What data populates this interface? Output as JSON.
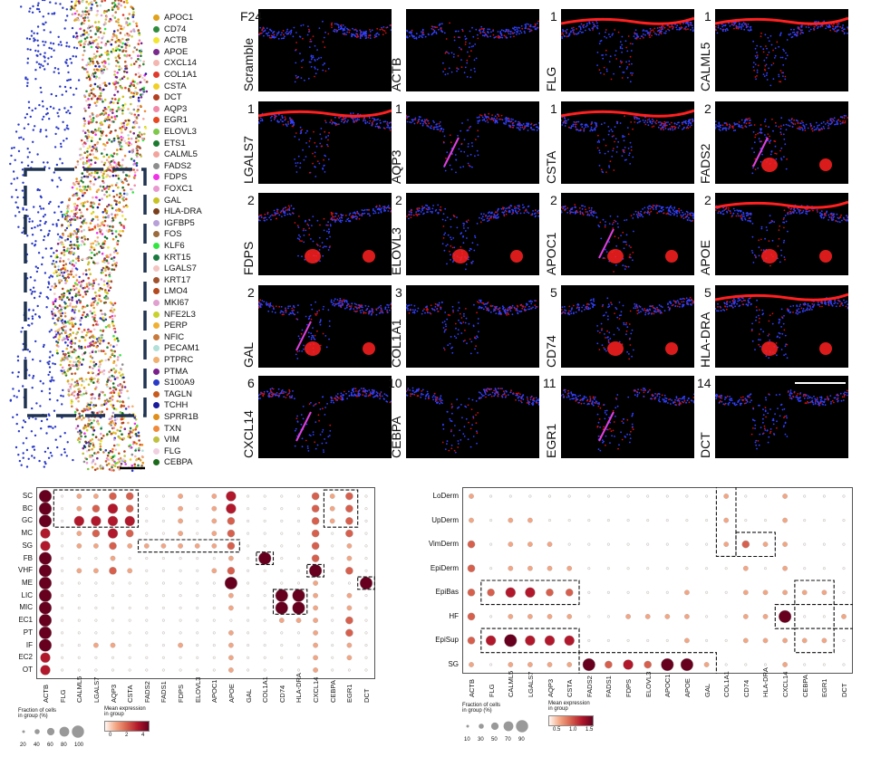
{
  "spatial_panel": {
    "legend": [
      {
        "gene": "APOC1",
        "color": "#e0a11b"
      },
      {
        "gene": "CD74",
        "color": "#2e8b3a"
      },
      {
        "gene": "ACTB",
        "color": "#f2e632"
      },
      {
        "gene": "APOE",
        "color": "#7a2a8c"
      },
      {
        "gene": "CXCL14",
        "color": "#f4b6b0"
      },
      {
        "gene": "COL1A1",
        "color": "#e03a2a"
      },
      {
        "gene": "CSTA",
        "color": "#f0d022"
      },
      {
        "gene": "DCT",
        "color": "#b3401f"
      },
      {
        "gene": "AQP3",
        "color": "#f08aa8"
      },
      {
        "gene": "EGR1",
        "color": "#e8471f"
      },
      {
        "gene": "ELOVL3",
        "color": "#7ec84a"
      },
      {
        "gene": "ETS1",
        "color": "#1b7a2f"
      },
      {
        "gene": "CALML5",
        "color": "#f2a49c"
      },
      {
        "gene": "FADS2",
        "color": "#8d8d8d"
      },
      {
        "gene": "FDPS",
        "color": "#f032e6"
      },
      {
        "gene": "FOXC1",
        "color": "#e89ad0"
      },
      {
        "gene": "GAL",
        "color": "#c9c224"
      },
      {
        "gene": "HLA-DRA",
        "color": "#7a3f1a"
      },
      {
        "gene": "IGFBP5",
        "color": "#b8a0d8"
      },
      {
        "gene": "FOS",
        "color": "#9c6a3c"
      },
      {
        "gene": "KLF6",
        "color": "#32e640"
      },
      {
        "gene": "KRT15",
        "color": "#197a40"
      },
      {
        "gene": "LGALS7",
        "color": "#f4c4c0"
      },
      {
        "gene": "KRT17",
        "color": "#a0522d"
      },
      {
        "gene": "LMO4",
        "color": "#b34a1f"
      },
      {
        "gene": "MKI67",
        "color": "#e0a0d0"
      },
      {
        "gene": "NFE2L3",
        "color": "#c8d22a"
      },
      {
        "gene": "PERP",
        "color": "#f0b030"
      },
      {
        "gene": "NFIC",
        "color": "#c87a3a"
      },
      {
        "gene": "PECAM1",
        "color": "#b0e0d8"
      },
      {
        "gene": "PTPRC",
        "color": "#f0b070"
      },
      {
        "gene": "PTMA",
        "color": "#7a1f8c"
      },
      {
        "gene": "S100A9",
        "color": "#2a3ac8"
      },
      {
        "gene": "TAGLN",
        "color": "#c85a1a"
      },
      {
        "gene": "TCHH",
        "color": "#1a1a9c"
      },
      {
        "gene": "SPRR1B",
        "color": "#e0901a"
      },
      {
        "gene": "TXN",
        "color": "#f08a3a"
      },
      {
        "gene": "VIM",
        "color": "#c0c040"
      },
      {
        "gene": "FLG",
        "color": "#f0d0e0"
      },
      {
        "gene": "CEBPA",
        "color": "#1a6a1a"
      }
    ]
  },
  "tiles": [
    {
      "gene": "Scramble",
      "num": "F24"
    },
    {
      "gene": "ACTB",
      "num": ""
    },
    {
      "gene": "FLG",
      "num": "1"
    },
    {
      "gene": "CALML5",
      "num": "1"
    },
    {
      "gene": "LGALS7",
      "num": "1"
    },
    {
      "gene": "AQP3",
      "num": "1"
    },
    {
      "gene": "CSTA",
      "num": "1"
    },
    {
      "gene": "FADS2",
      "num": "2"
    },
    {
      "gene": "FDPS",
      "num": "2"
    },
    {
      "gene": "ELOVL3",
      "num": "2"
    },
    {
      "gene": "APOC1",
      "num": "2"
    },
    {
      "gene": "APOE",
      "num": "2"
    },
    {
      "gene": "GAL",
      "num": "2"
    },
    {
      "gene": "COL1A1",
      "num": "3"
    },
    {
      "gene": "CD74",
      "num": "5"
    },
    {
      "gene": "HLA-DRA",
      "num": "5"
    },
    {
      "gene": "CXCL14",
      "num": "6"
    },
    {
      "gene": "CEBPA",
      "num": "10"
    },
    {
      "gene": "EGR1",
      "num": "11"
    },
    {
      "gene": "DCT",
      "num": "14"
    }
  ],
  "chart_data": [
    {
      "type": "dotplot",
      "rows": [
        "SC",
        "BC",
        "GC",
        "MC",
        "SG",
        "FB",
        "VHF",
        "ME",
        "LIC",
        "MIC",
        "EC1",
        "PT",
        "IF",
        "EC2",
        "OT"
      ],
      "columns": [
        "ACTB",
        "FLG",
        "CALML5",
        "LGALS7",
        "AQP3",
        "CSTA",
        "FADS2",
        "FADS1",
        "FDPS",
        "ELOVL3",
        "APOC1",
        "APOE",
        "GAL",
        "COL1A1",
        "CD74",
        "HLA-DRA",
        "CXCL14",
        "CEBPA",
        "EGR1",
        "DCT"
      ],
      "size_legend": {
        "title": "Fraction of cells\nin group (%)",
        "ticks": [
          "20",
          "40",
          "60",
          "80",
          "100"
        ]
      },
      "color_legend": {
        "title": "Mean expression\nin group",
        "ticks": [
          "0",
          "2",
          "4"
        ]
      },
      "expression": [
        [
          4,
          0,
          1,
          1,
          2,
          2,
          0,
          0,
          1,
          0,
          1,
          3,
          0,
          0,
          0,
          0,
          2,
          1,
          2,
          0
        ],
        [
          4,
          0,
          1,
          2,
          3,
          2,
          0,
          0,
          1,
          0,
          1,
          3,
          0,
          0,
          0,
          0,
          2,
          1,
          2,
          0
        ],
        [
          4,
          0,
          3,
          3,
          3,
          3,
          0,
          0,
          1,
          0,
          1,
          2,
          0,
          0,
          0,
          0,
          2,
          1,
          2,
          0
        ],
        [
          3,
          0,
          1,
          2,
          3,
          2,
          0,
          0,
          1,
          0,
          1,
          2,
          0,
          0,
          0,
          0,
          2,
          0,
          2,
          0
        ],
        [
          3,
          0,
          1,
          1,
          2,
          1,
          1,
          1,
          1,
          1,
          1,
          2,
          0,
          0,
          0,
          0,
          2,
          0,
          1,
          0
        ],
        [
          4,
          0,
          0,
          0,
          1,
          0,
          0,
          0,
          0,
          0,
          0,
          1,
          0,
          4,
          0,
          0,
          2,
          0,
          1,
          0
        ],
        [
          4,
          0,
          1,
          1,
          2,
          1,
          0,
          0,
          0,
          0,
          1,
          2,
          0,
          0,
          0,
          0,
          4,
          0,
          2,
          0
        ],
        [
          4,
          0,
          0,
          0,
          0,
          0,
          0,
          0,
          0,
          0,
          0,
          4,
          0,
          0,
          0,
          0,
          1,
          0,
          0,
          4
        ],
        [
          4,
          0,
          0,
          0,
          0,
          0,
          0,
          0,
          0,
          0,
          0,
          1,
          0,
          0,
          4,
          4,
          1,
          0,
          1,
          0
        ],
        [
          4,
          0,
          0,
          0,
          0,
          0,
          0,
          0,
          0,
          0,
          0,
          1,
          0,
          0,
          4,
          4,
          1,
          0,
          1,
          0
        ],
        [
          4,
          0,
          0,
          0,
          0,
          0,
          0,
          0,
          0,
          0,
          0,
          0,
          0,
          0,
          1,
          1,
          1,
          0,
          2,
          0
        ],
        [
          4,
          0,
          0,
          0,
          0,
          0,
          0,
          0,
          0,
          0,
          0,
          1,
          0,
          0,
          0,
          0,
          1,
          0,
          2,
          0
        ],
        [
          4,
          0,
          0,
          1,
          1,
          0,
          0,
          0,
          1,
          0,
          0,
          1,
          0,
          0,
          0,
          0,
          1,
          0,
          1,
          0
        ],
        [
          3,
          0,
          0,
          0,
          0,
          0,
          0,
          0,
          0,
          0,
          0,
          1,
          0,
          0,
          0,
          0,
          1,
          0,
          1,
          0
        ],
        [
          3,
          0,
          0,
          0,
          0,
          0,
          0,
          0,
          0,
          0,
          0,
          1,
          0,
          0,
          0,
          0,
          1,
          0,
          0,
          0
        ]
      ]
    },
    {
      "type": "dotplot",
      "rows": [
        "LoDerm",
        "UpDerm",
        "VimDerm",
        "EpiDerm",
        "EpiBas",
        "HF",
        "EpiSup",
        "SG"
      ],
      "columns": [
        "ACTB",
        "FLG",
        "CALML5",
        "LGALS7",
        "AQP3",
        "CSTA",
        "FADS2",
        "FADS1",
        "FDPS",
        "ELOVL3",
        "APOC1",
        "APOE",
        "GAL",
        "COL1A1",
        "CD74",
        "HLA-DRA",
        "CXCL14",
        "CEBPA",
        "EGR1",
        "DCT"
      ],
      "size_legend": {
        "title": "Fraction of cells\nin group (%)",
        "ticks": [
          "10",
          "30",
          "50",
          "70",
          "90"
        ]
      },
      "color_legend": {
        "title": "Mean expression\nin group",
        "ticks": [
          "0.5",
          "1.0",
          "1.5"
        ]
      },
      "expression": [
        [
          1,
          0,
          0,
          0,
          0,
          0,
          0,
          0,
          0,
          0,
          0,
          0,
          0,
          1,
          0,
          0,
          1,
          0,
          0,
          0
        ],
        [
          1,
          0,
          1,
          1,
          0,
          0,
          0,
          0,
          0,
          0,
          0,
          0,
          0,
          1,
          0,
          0,
          1,
          0,
          0,
          0
        ],
        [
          2,
          0,
          1,
          1,
          1,
          0,
          0,
          0,
          0,
          0,
          0,
          0,
          0,
          1,
          2,
          1,
          1,
          0,
          0,
          0
        ],
        [
          2,
          0,
          1,
          1,
          1,
          1,
          0,
          0,
          0,
          0,
          0,
          0,
          0,
          0,
          1,
          0,
          1,
          0,
          0,
          0
        ],
        [
          2,
          2,
          3,
          3,
          2,
          2,
          0,
          0,
          0,
          0,
          0,
          1,
          0,
          0,
          1,
          1,
          1,
          1,
          1,
          0
        ],
        [
          2,
          0,
          1,
          1,
          1,
          1,
          0,
          0,
          1,
          1,
          1,
          1,
          0,
          0,
          1,
          1,
          4,
          0,
          0,
          1
        ],
        [
          2,
          3,
          4,
          3,
          3,
          3,
          0,
          0,
          0,
          0,
          0,
          1,
          0,
          0,
          1,
          1,
          1,
          1,
          1,
          0
        ],
        [
          1,
          0,
          1,
          1,
          1,
          1,
          4,
          2,
          3,
          2,
          4,
          4,
          1,
          0,
          0,
          0,
          1,
          0,
          0,
          0
        ]
      ]
    }
  ]
}
